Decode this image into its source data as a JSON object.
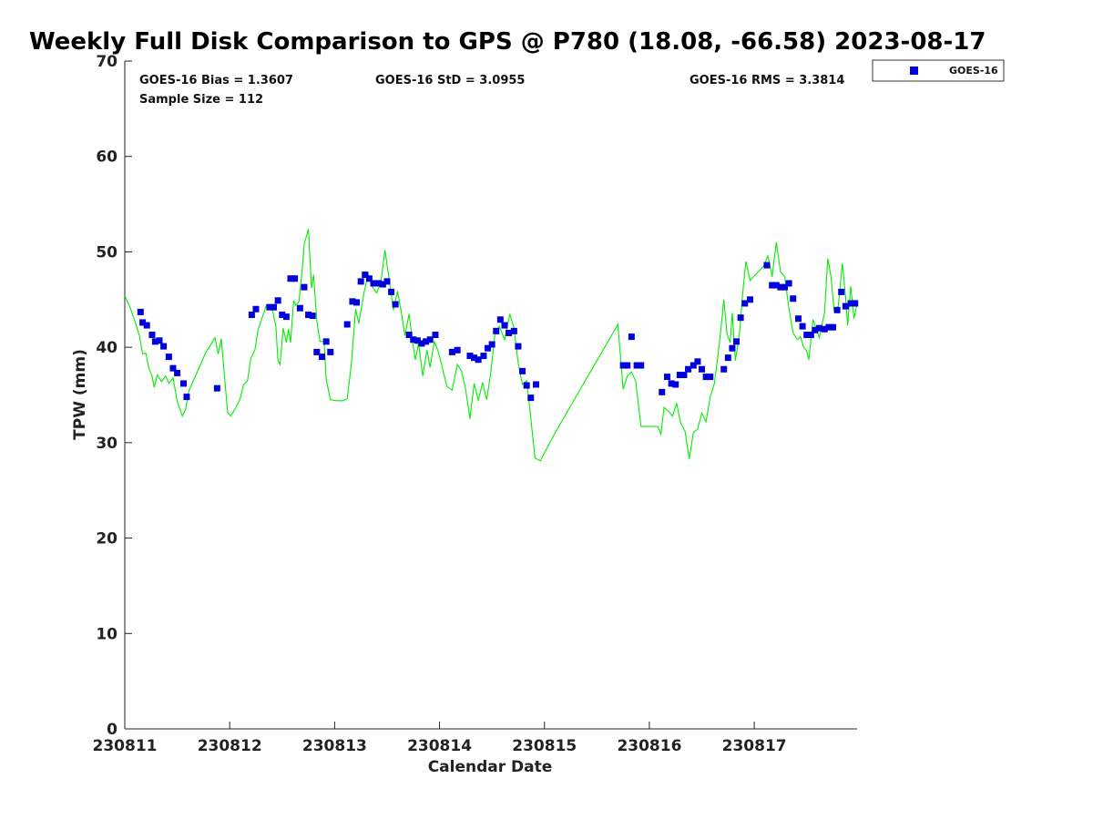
{
  "chart_data": {
    "type": "scatter",
    "title": "Weekly Full Disk Comparison to GPS @ P780 (18.08, -66.58) 2023-08-17",
    "xlabel": "Calendar Date",
    "ylabel": "TPW (mm)",
    "xlim": [
      230811.0,
      230817.98
    ],
    "ylim": [
      0,
      70
    ],
    "xtick_labels": [
      "230811",
      "230812",
      "230813",
      "230814",
      "230815",
      "230816",
      "230817"
    ],
    "ytick_labels": [
      "0",
      "10",
      "20",
      "30",
      "40",
      "50",
      "60",
      "70"
    ],
    "grid": false,
    "legend": {
      "position": "top-right",
      "entries": [
        "GOES-16"
      ]
    },
    "stats": {
      "bias": "GOES-16 Bias = 1.3607",
      "std": "GOES-16 StD = 3.0955",
      "rms": "GOES-16 RMS = 3.3814",
      "sample": "Sample Size = 112"
    },
    "colors": {
      "goes": "#0000dd",
      "gps": "#00ee00"
    },
    "series": [
      {
        "name": "GOES-16",
        "marker": "square",
        "points": [
          [
            230811.15,
            43.7
          ],
          [
            230811.17,
            42.6
          ],
          [
            230811.21,
            42.3
          ],
          [
            230811.26,
            41.3
          ],
          [
            230811.29,
            40.6
          ],
          [
            230811.33,
            40.7
          ],
          [
            230811.37,
            40.1
          ],
          [
            230811.42,
            39.0
          ],
          [
            230811.46,
            37.8
          ],
          [
            230811.5,
            37.3
          ],
          [
            230811.56,
            36.2
          ],
          [
            230811.59,
            34.8
          ],
          [
            230811.88,
            35.7
          ],
          [
            230812.21,
            43.4
          ],
          [
            230812.25,
            44.0
          ],
          [
            230812.38,
            44.2
          ],
          [
            230812.42,
            44.2
          ],
          [
            230812.46,
            44.9
          ],
          [
            230812.5,
            43.4
          ],
          [
            230812.54,
            43.2
          ],
          [
            230812.58,
            47.2
          ],
          [
            230812.62,
            47.2
          ],
          [
            230812.67,
            44.1
          ],
          [
            230812.71,
            46.3
          ],
          [
            230812.75,
            43.4
          ],
          [
            230812.79,
            43.3
          ],
          [
            230812.83,
            39.5
          ],
          [
            230812.88,
            39.0
          ],
          [
            230812.92,
            40.6
          ],
          [
            230812.96,
            39.5
          ],
          [
            230813.12,
            42.4
          ],
          [
            230813.17,
            44.8
          ],
          [
            230813.21,
            44.7
          ],
          [
            230813.25,
            46.9
          ],
          [
            230813.29,
            47.6
          ],
          [
            230813.33,
            47.2
          ],
          [
            230813.37,
            46.7
          ],
          [
            230813.42,
            46.7
          ],
          [
            230813.46,
            46.6
          ],
          [
            230813.5,
            46.9
          ],
          [
            230813.54,
            45.8
          ],
          [
            230813.58,
            44.5
          ],
          [
            230813.71,
            41.3
          ],
          [
            230813.75,
            40.8
          ],
          [
            230813.79,
            40.7
          ],
          [
            230813.83,
            40.4
          ],
          [
            230813.87,
            40.6
          ],
          [
            230813.91,
            40.8
          ],
          [
            230813.96,
            41.3
          ],
          [
            230814.12,
            39.5
          ],
          [
            230814.17,
            39.7
          ],
          [
            230814.29,
            39.1
          ],
          [
            230814.33,
            38.9
          ],
          [
            230814.37,
            38.7
          ],
          [
            230814.42,
            39.1
          ],
          [
            230814.46,
            39.9
          ],
          [
            230814.5,
            40.3
          ],
          [
            230814.54,
            41.7
          ],
          [
            230814.58,
            42.9
          ],
          [
            230814.62,
            42.3
          ],
          [
            230814.66,
            41.5
          ],
          [
            230814.71,
            41.7
          ],
          [
            230814.75,
            40.1
          ],
          [
            230814.79,
            37.5
          ],
          [
            230814.83,
            36.0
          ],
          [
            230814.87,
            34.7
          ],
          [
            230814.92,
            36.1
          ],
          [
            230815.75,
            38.1
          ],
          [
            230815.79,
            38.1
          ],
          [
            230815.83,
            41.1
          ],
          [
            230815.88,
            38.1
          ],
          [
            230815.92,
            38.1
          ],
          [
            230816.12,
            35.3
          ],
          [
            230816.17,
            36.9
          ],
          [
            230816.21,
            36.2
          ],
          [
            230816.25,
            36.1
          ],
          [
            230816.29,
            37.1
          ],
          [
            230816.33,
            37.1
          ],
          [
            230816.37,
            37.7
          ],
          [
            230816.42,
            38.1
          ],
          [
            230816.46,
            38.5
          ],
          [
            230816.5,
            37.7
          ],
          [
            230816.54,
            36.9
          ],
          [
            230816.58,
            36.9
          ],
          [
            230816.71,
            37.7
          ],
          [
            230816.75,
            38.9
          ],
          [
            230816.79,
            39.9
          ],
          [
            230816.83,
            40.6
          ],
          [
            230816.87,
            43.1
          ],
          [
            230816.91,
            44.6
          ],
          [
            230816.96,
            45.0
          ],
          [
            230817.12,
            48.6
          ],
          [
            230817.17,
            46.5
          ],
          [
            230817.21,
            46.5
          ],
          [
            230817.25,
            46.3
          ],
          [
            230817.29,
            46.3
          ],
          [
            230817.33,
            46.7
          ],
          [
            230817.37,
            45.1
          ],
          [
            230817.42,
            43.0
          ],
          [
            230817.46,
            42.2
          ],
          [
            230817.5,
            41.3
          ],
          [
            230817.54,
            41.3
          ],
          [
            230817.58,
            41.8
          ],
          [
            230817.62,
            42.0
          ],
          [
            230817.67,
            41.9
          ],
          [
            230817.71,
            42.1
          ],
          [
            230817.75,
            42.1
          ],
          [
            230817.79,
            43.9
          ],
          [
            230817.83,
            45.8
          ],
          [
            230817.87,
            44.3
          ],
          [
            230817.92,
            44.6
          ],
          [
            230817.96,
            44.6
          ]
        ]
      },
      {
        "marker": "line",
        "points": [
          [
            230811.0,
            45.4
          ],
          [
            230811.05,
            44.2
          ],
          [
            230811.1,
            42.6
          ],
          [
            230811.14,
            41.2
          ],
          [
            230811.17,
            39.3
          ],
          [
            230811.2,
            39.4
          ],
          [
            230811.23,
            37.8
          ],
          [
            230811.26,
            37.0
          ],
          [
            230811.28,
            35.8
          ],
          [
            230811.31,
            37.1
          ],
          [
            230811.35,
            36.4
          ],
          [
            230811.39,
            37.0
          ],
          [
            230811.42,
            36.2
          ],
          [
            230811.46,
            36.8
          ],
          [
            230811.5,
            34.3
          ],
          [
            230811.55,
            32.8
          ],
          [
            230811.58,
            33.5
          ],
          [
            230811.61,
            35.4
          ],
          [
            230811.69,
            37.4
          ],
          [
            230811.77,
            39.4
          ],
          [
            230811.86,
            41.0
          ],
          [
            230811.89,
            39.3
          ],
          [
            230811.92,
            40.9
          ],
          [
            230811.95,
            37.0
          ],
          [
            230811.98,
            33.2
          ],
          [
            230812.01,
            32.8
          ],
          [
            230812.05,
            33.5
          ],
          [
            230812.1,
            34.6
          ],
          [
            230812.13,
            36.0
          ],
          [
            230812.17,
            36.5
          ],
          [
            230812.2,
            38.8
          ],
          [
            230812.24,
            39.7
          ],
          [
            230812.27,
            41.8
          ],
          [
            230812.31,
            43.1
          ],
          [
            230812.35,
            44.4
          ],
          [
            230812.4,
            44.3
          ],
          [
            230812.44,
            42.2
          ],
          [
            230812.46,
            38.6
          ],
          [
            230812.48,
            38.2
          ],
          [
            230812.51,
            42.0
          ],
          [
            230812.54,
            40.5
          ],
          [
            230812.56,
            41.9
          ],
          [
            230812.58,
            40.5
          ],
          [
            230812.61,
            44.9
          ],
          [
            230812.63,
            44.4
          ],
          [
            230812.66,
            44.8
          ],
          [
            230812.69,
            48.0
          ],
          [
            230812.71,
            50.8
          ],
          [
            230812.75,
            52.4
          ],
          [
            230812.78,
            46.2
          ],
          [
            230812.8,
            47.6
          ],
          [
            230812.83,
            42.8
          ],
          [
            230812.86,
            40.6
          ],
          [
            230812.9,
            40.6
          ],
          [
            230812.92,
            36.6
          ],
          [
            230812.96,
            34.5
          ],
          [
            230813.02,
            34.4
          ],
          [
            230813.08,
            34.4
          ],
          [
            230813.12,
            34.6
          ],
          [
            230813.16,
            38.3
          ],
          [
            230813.2,
            44.0
          ],
          [
            230813.23,
            42.5
          ],
          [
            230813.28,
            45.7
          ],
          [
            230813.32,
            47.7
          ],
          [
            230813.36,
            46.3
          ],
          [
            230813.4,
            45.7
          ],
          [
            230813.44,
            46.7
          ],
          [
            230813.48,
            50.2
          ],
          [
            230813.52,
            47.1
          ],
          [
            230813.56,
            43.9
          ],
          [
            230813.6,
            45.9
          ],
          [
            230813.64,
            43.4
          ],
          [
            230813.67,
            41.2
          ],
          [
            230813.71,
            43.5
          ],
          [
            230813.74,
            40.8
          ],
          [
            230813.77,
            38.7
          ],
          [
            230813.8,
            40.4
          ],
          [
            230813.84,
            37.0
          ],
          [
            230813.88,
            39.7
          ],
          [
            230813.91,
            37.9
          ],
          [
            230813.95,
            40.6
          ],
          [
            230813.99,
            39.5
          ],
          [
            230814.03,
            37.7
          ],
          [
            230814.07,
            35.9
          ],
          [
            230814.12,
            35.5
          ],
          [
            230814.17,
            38.2
          ],
          [
            230814.21,
            37.5
          ],
          [
            230814.25,
            35.5
          ],
          [
            230814.29,
            32.5
          ],
          [
            230814.33,
            36.2
          ],
          [
            230814.37,
            34.4
          ],
          [
            230814.41,
            36.3
          ],
          [
            230814.45,
            34.5
          ],
          [
            230814.49,
            37.5
          ],
          [
            230814.53,
            41.6
          ],
          [
            230814.57,
            42.2
          ],
          [
            230814.62,
            40.8
          ],
          [
            230814.67,
            43.5
          ],
          [
            230814.71,
            42.0
          ],
          [
            230814.75,
            38.3
          ],
          [
            230814.79,
            36.1
          ],
          [
            230814.83,
            36.5
          ],
          [
            230814.86,
            33.6
          ],
          [
            230814.91,
            28.4
          ],
          [
            230814.96,
            28.1
          ],
          [
            230815.1,
            31.0
          ],
          [
            230815.3,
            34.8
          ],
          [
            230815.5,
            38.6
          ],
          [
            230815.7,
            42.4
          ],
          [
            230815.75,
            35.6
          ],
          [
            230815.79,
            37.0
          ],
          [
            230815.83,
            37.4
          ],
          [
            230815.87,
            36.4
          ],
          [
            230815.92,
            31.7
          ],
          [
            230816.05,
            31.7
          ],
          [
            230816.08,
            31.7
          ],
          [
            230816.11,
            30.9
          ],
          [
            230816.14,
            33.7
          ],
          [
            230816.18,
            33.3
          ],
          [
            230816.22,
            32.8
          ],
          [
            230816.26,
            34.1
          ],
          [
            230816.3,
            32.0
          ],
          [
            230816.34,
            31.2
          ],
          [
            230816.38,
            28.3
          ],
          [
            230816.42,
            31.1
          ],
          [
            230816.46,
            31.4
          ],
          [
            230816.5,
            33.1
          ],
          [
            230816.54,
            32.2
          ],
          [
            230816.58,
            34.8
          ],
          [
            230816.62,
            36.2
          ],
          [
            230816.65,
            38.8
          ],
          [
            230816.68,
            41.7
          ],
          [
            230816.71,
            45.0
          ],
          [
            230816.74,
            41.4
          ],
          [
            230816.77,
            40.5
          ],
          [
            230816.79,
            43.6
          ],
          [
            230816.82,
            38.6
          ],
          [
            230816.86,
            41.6
          ],
          [
            230816.89,
            45.7
          ],
          [
            230816.92,
            49.0
          ],
          [
            230816.96,
            47.0
          ],
          [
            230817.02,
            47.7
          ],
          [
            230817.09,
            48.5
          ],
          [
            230817.13,
            49.6
          ],
          [
            230817.17,
            47.4
          ],
          [
            230817.21,
            51.0
          ],
          [
            230817.25,
            47.9
          ],
          [
            230817.29,
            47.4
          ],
          [
            230817.33,
            44.1
          ],
          [
            230817.37,
            41.5
          ],
          [
            230817.41,
            40.8
          ],
          [
            230817.44,
            41.1
          ],
          [
            230817.47,
            40.0
          ],
          [
            230817.5,
            39.6
          ],
          [
            230817.52,
            38.7
          ],
          [
            230817.56,
            42.9
          ],
          [
            230817.6,
            41.6
          ],
          [
            230817.62,
            41.0
          ],
          [
            230817.65,
            42.7
          ],
          [
            230817.67,
            43.6
          ],
          [
            230817.7,
            49.3
          ],
          [
            230817.73,
            47.5
          ],
          [
            230817.76,
            43.9
          ],
          [
            230817.8,
            44.3
          ],
          [
            230817.84,
            48.8
          ],
          [
            230817.87,
            45.3
          ],
          [
            230817.89,
            42.3
          ],
          [
            230817.92,
            46.4
          ],
          [
            230817.95,
            43.0
          ],
          [
            230817.98,
            44.6
          ]
        ]
      }
    ]
  }
}
